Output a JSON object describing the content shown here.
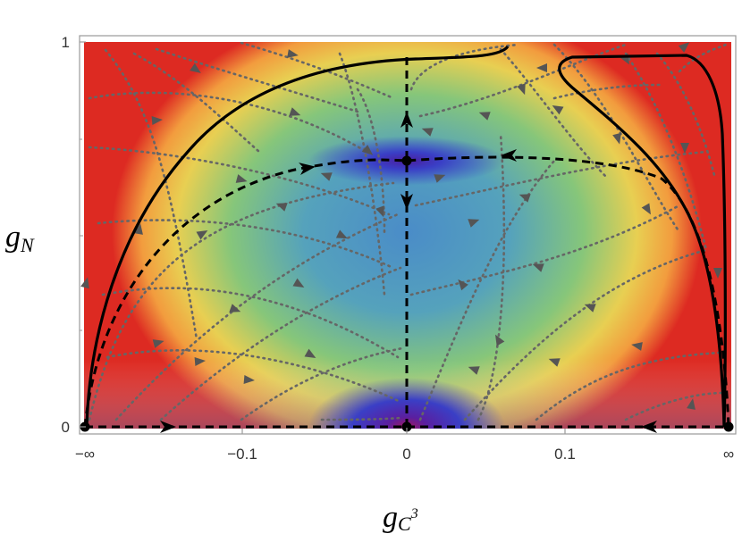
{
  "chart_data": {
    "type": "heatmap",
    "xlabel": "g",
    "xlabel_sub": "C",
    "xlabel_sup": "3",
    "ylabel": "g",
    "ylabel_sub": "N",
    "xticks": [
      {
        "value": "-inf",
        "label": "−∞"
      },
      {
        "value": -0.1,
        "label": "−0.1"
      },
      {
        "value": 0,
        "label": "0"
      },
      {
        "value": 0.1,
        "label": "0.1"
      },
      {
        "value": "inf",
        "label": "∞"
      }
    ],
    "yticks": [
      {
        "value": 0,
        "label": "0"
      },
      {
        "value": 1,
        "label": "1"
      }
    ],
    "colormap": [
      "#5a1fa0",
      "#3d3fc4",
      "#4a84c8",
      "#5aa8b4",
      "#8cc878",
      "#e0d050",
      "#f0a040",
      "#e86028",
      "#dc2020"
    ],
    "fixed_points": [
      {
        "x": "-inf",
        "y": 0
      },
      {
        "x": 0,
        "y": 0
      },
      {
        "x": "inf",
        "y": 0
      },
      {
        "x": 0,
        "y": 0.69
      }
    ],
    "separatrices": "dashed black",
    "critical_curves": "solid black",
    "flow_lines": "dotted gray with arrows",
    "grid": false
  }
}
